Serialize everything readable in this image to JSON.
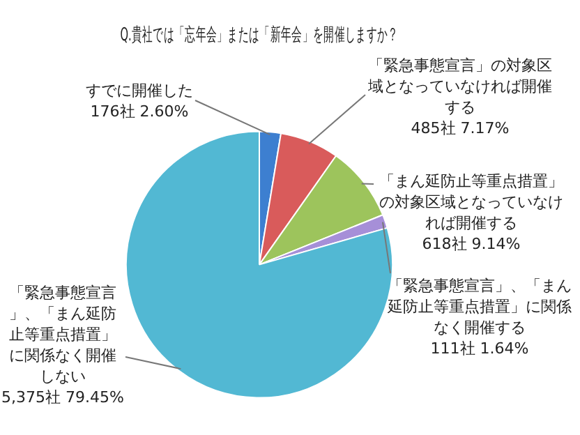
{
  "chart_data": {
    "type": "pie",
    "title": "Q.貴社では「忘年会」または「新年会」を開催しますか？",
    "categories": [
      "すでに開催した",
      "「緊急事態宣言」の対象区域となっていなければ開催する",
      "「まん延防止等重点措置」の対象区域となっていなければ開催する",
      "「緊急事態宣言」、「まん延防止等重点措置」に関係なく開催する",
      "「緊急事態宣言」、「まん延防止等重点措置」に関係なく開催しない"
    ],
    "values": [
      176,
      485,
      618,
      111,
      5375
    ],
    "value_labels": [
      "176社 2.60%",
      "485社 7.17%",
      "618社 9.14%",
      "111社 1.64%",
      "5,375社 79.45%"
    ],
    "colors": [
      "#3d7fd0",
      "#d95b5b",
      "#9dc45c",
      "#a68fd8",
      "#52b8d3"
    ],
    "legend": false
  }
}
